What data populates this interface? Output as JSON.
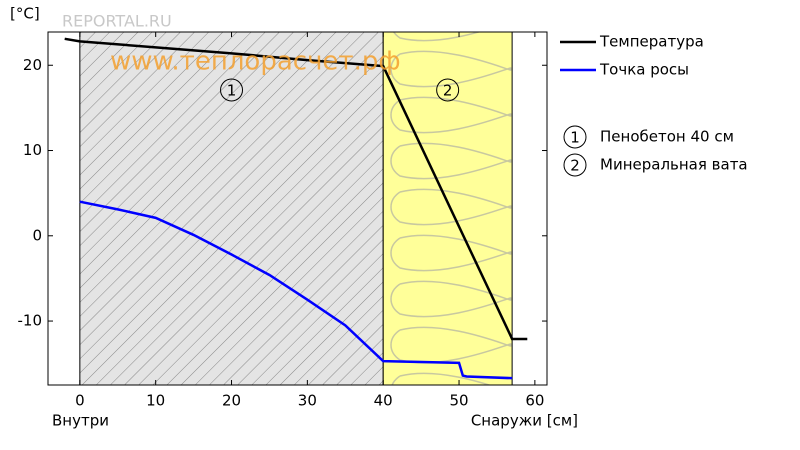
{
  "chart_data": {
    "type": "line",
    "y_label": "[°C]",
    "x_label_left": "Внутри",
    "x_label_right": "Снаружи [см]",
    "watermarks": [
      "REPORTAL.RU",
      "www.теплорасчет.рф"
    ],
    "xlim": [
      -4.2,
      61.6
    ],
    "ylim": [
      -17.5,
      23.9
    ],
    "xticks": [
      0,
      10,
      20,
      30,
      40,
      50,
      60
    ],
    "yticks": [
      -10,
      0,
      10,
      20
    ],
    "layers": [
      {
        "number": "1",
        "name": "Пенобетон 40 см",
        "range": [
          0,
          40
        ]
      },
      {
        "number": "2",
        "name": "Минеральная вата",
        "range": [
          40,
          57
        ]
      }
    ],
    "series": [
      {
        "name": "Температура",
        "color": "#000000",
        "x": [
          -2,
          0,
          10,
          20,
          30,
          40,
          57,
          59
        ],
        "values": [
          23.1,
          22.8,
          22.1,
          21.4,
          20.6,
          19.9,
          -12.1,
          -12.1
        ]
      },
      {
        "name": "Точка росы",
        "color": "#0000ff",
        "x": [
          0,
          5,
          10,
          15,
          20,
          25,
          30,
          35,
          40,
          50,
          50.5,
          51,
          57
        ],
        "values": [
          4.0,
          3.1,
          2.1,
          0.1,
          -2.2,
          -4.6,
          -7.5,
          -10.5,
          -14.7,
          -14.9,
          -16.4,
          -16.5,
          -16.7
        ]
      }
    ]
  }
}
